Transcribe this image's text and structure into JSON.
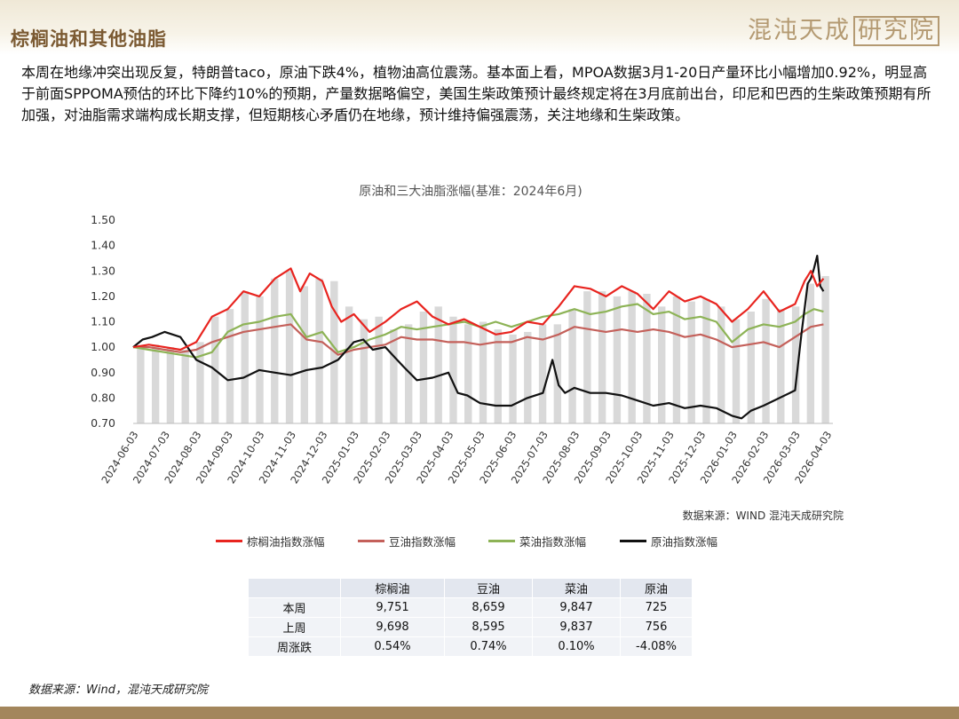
{
  "header": {
    "title": "棕榈油和其他油脂",
    "logo_text": "混沌天成",
    "logo_box_text": "研究院"
  },
  "paragraph": "本周在地缘冲突出现反复，特朗普taco，原油下跌4%，植物油高位震荡。基本面上看，MPOA数据3月1-20日产量环比小幅增加0.92%，明显高于前面SPPOMA预估的环比下降约10%的预期，产量数据略偏空，美国生柴政策预计最终规定将在3月底前出台，印尼和巴西的生柴政策预期有所加强，对油脂需求端构成长期支撑，但短期核心矛盾仍在地缘，预计维持偏强震荡，关注地缘和生柴政策。",
  "chart_source": "数据来源：WIND 混沌天成研究院",
  "chart_data": {
    "type": "line",
    "title": "原油和三大油脂涨幅(基准：2024年6月)",
    "ylim": [
      0.7,
      1.5
    ],
    "yticks": [
      "0.70",
      "0.80",
      "0.90",
      "1.00",
      "1.10",
      "1.20",
      "1.30",
      "1.40",
      "1.50"
    ],
    "x_tick_labels": [
      "2024-06-03",
      "2024-07-03",
      "2024-08-03",
      "2024-09-03",
      "2024-10-03",
      "2024-11-03",
      "2024-12-03",
      "2025-01-03",
      "2025-02-03",
      "2025-03-03",
      "2025-04-03",
      "2025-05-03",
      "2025-06-03",
      "2025-07-03",
      "2025-08-03",
      "2025-09-03",
      "2025-10-03",
      "2025-11-03",
      "2025-12-03",
      "2026-01-03",
      "2026-02-03",
      "2026-03-03",
      "2026-04-03"
    ],
    "x_tick_month_index": [
      0,
      1,
      2,
      3,
      4,
      5,
      6,
      7,
      8,
      9,
      10,
      11,
      12,
      13,
      14,
      15,
      16,
      17,
      18,
      19,
      20,
      21,
      22
    ],
    "series": [
      {
        "name": "棕榈油指数涨幅",
        "color": "#e8241f",
        "x": [
          0,
          0.5,
          1,
          1.5,
          2,
          2.5,
          3,
          3.5,
          4,
          4.5,
          5,
          5.3,
          5.6,
          6,
          6.3,
          6.6,
          7,
          7.5,
          8,
          8.5,
          9,
          9.5,
          10,
          10.5,
          11,
          11.5,
          12,
          12.5,
          13,
          13.5,
          14,
          14.5,
          15,
          15.5,
          16,
          16.5,
          17,
          17.5,
          18,
          18.5,
          19,
          19.5,
          20,
          20.5,
          21,
          21.3,
          21.5,
          21.7,
          21.9
        ],
        "y": [
          1.0,
          1.01,
          1.0,
          0.99,
          1.02,
          1.12,
          1.15,
          1.22,
          1.2,
          1.27,
          1.31,
          1.22,
          1.29,
          1.26,
          1.16,
          1.1,
          1.13,
          1.06,
          1.1,
          1.15,
          1.18,
          1.12,
          1.09,
          1.11,
          1.08,
          1.05,
          1.06,
          1.1,
          1.09,
          1.16,
          1.24,
          1.23,
          1.2,
          1.24,
          1.21,
          1.15,
          1.22,
          1.18,
          1.2,
          1.17,
          1.1,
          1.15,
          1.22,
          1.14,
          1.17,
          1.26,
          1.3,
          1.24,
          1.27
        ]
      },
      {
        "name": "豆油指数涨幅",
        "color": "#c4605a",
        "x": [
          0,
          0.5,
          1,
          1.5,
          2,
          2.5,
          3,
          3.5,
          4,
          4.5,
          5,
          5.5,
          6,
          6.5,
          7,
          7.5,
          8,
          8.5,
          9,
          9.5,
          10,
          10.5,
          11,
          11.5,
          12,
          12.5,
          13,
          13.5,
          14,
          14.5,
          15,
          15.5,
          16,
          16.5,
          17,
          17.5,
          18,
          18.5,
          19,
          19.5,
          20,
          20.5,
          21,
          21.5,
          21.9
        ],
        "y": [
          1.0,
          1.0,
          0.99,
          0.98,
          0.99,
          1.02,
          1.04,
          1.06,
          1.07,
          1.08,
          1.09,
          1.03,
          1.02,
          0.97,
          0.99,
          1.0,
          1.01,
          1.04,
          1.03,
          1.03,
          1.02,
          1.02,
          1.01,
          1.02,
          1.02,
          1.04,
          1.03,
          1.05,
          1.08,
          1.07,
          1.06,
          1.07,
          1.06,
          1.07,
          1.06,
          1.04,
          1.05,
          1.03,
          1.0,
          1.01,
          1.02,
          1.0,
          1.04,
          1.08,
          1.09
        ]
      },
      {
        "name": "菜油指数涨幅",
        "color": "#8db356",
        "x": [
          0,
          0.5,
          1,
          1.5,
          2,
          2.5,
          3,
          3.5,
          4,
          4.5,
          5,
          5.5,
          6,
          6.5,
          7,
          7.5,
          8,
          8.5,
          9,
          9.5,
          10,
          10.5,
          11,
          11.5,
          12,
          12.5,
          13,
          13.5,
          14,
          14.5,
          15,
          15.5,
          16,
          16.5,
          17,
          17.5,
          18,
          18.5,
          19,
          19.5,
          20,
          20.5,
          21,
          21.3,
          21.6,
          21.9
        ],
        "y": [
          1.0,
          0.99,
          0.98,
          0.97,
          0.96,
          0.98,
          1.06,
          1.09,
          1.1,
          1.12,
          1.13,
          1.04,
          1.06,
          0.98,
          1.0,
          1.03,
          1.05,
          1.08,
          1.07,
          1.08,
          1.09,
          1.1,
          1.08,
          1.1,
          1.08,
          1.1,
          1.12,
          1.13,
          1.15,
          1.13,
          1.14,
          1.16,
          1.17,
          1.13,
          1.14,
          1.11,
          1.12,
          1.1,
          1.02,
          1.07,
          1.09,
          1.08,
          1.1,
          1.13,
          1.15,
          1.14
        ]
      },
      {
        "name": "原油指数涨幅",
        "color": "#111111",
        "x": [
          0,
          0.3,
          0.6,
          1,
          1.5,
          2,
          2.5,
          3,
          3.5,
          4,
          4.5,
          5,
          5.5,
          6,
          6.5,
          7,
          7.3,
          7.6,
          8,
          8.3,
          8.6,
          9,
          9.5,
          10,
          10.3,
          10.6,
          11,
          11.5,
          12,
          12.5,
          13,
          13.3,
          13.5,
          13.7,
          14,
          14.5,
          15,
          15.5,
          16,
          16.5,
          17,
          17.5,
          18,
          18.5,
          19,
          19.3,
          19.6,
          20,
          20.5,
          21,
          21.2,
          21.4,
          21.5,
          21.6,
          21.7,
          21.8,
          21.9
        ],
        "y": [
          1.0,
          1.03,
          1.04,
          1.06,
          1.04,
          0.95,
          0.92,
          0.87,
          0.88,
          0.91,
          0.9,
          0.89,
          0.91,
          0.92,
          0.95,
          1.02,
          1.03,
          0.99,
          1.0,
          0.96,
          0.92,
          0.87,
          0.88,
          0.9,
          0.82,
          0.81,
          0.78,
          0.77,
          0.77,
          0.8,
          0.82,
          0.95,
          0.85,
          0.82,
          0.84,
          0.82,
          0.82,
          0.81,
          0.79,
          0.77,
          0.78,
          0.76,
          0.77,
          0.76,
          0.73,
          0.72,
          0.75,
          0.77,
          0.8,
          0.83,
          1.05,
          1.25,
          1.27,
          1.31,
          1.36,
          1.24,
          1.22
        ]
      }
    ],
    "bars": {
      "values": [
        1.0,
        1.01,
        1.0,
        0.99,
        1.02,
        1.12,
        1.15,
        1.22,
        1.2,
        1.27,
        1.3,
        1.24,
        1.27,
        1.26,
        1.16,
        1.11,
        1.12,
        1.07,
        1.09,
        1.14,
        1.16,
        1.12,
        1.09,
        1.1,
        1.07,
        1.05,
        1.06,
        1.09,
        1.09,
        1.15,
        1.22,
        1.22,
        1.2,
        1.22,
        1.21,
        1.16,
        1.2,
        1.18,
        1.19,
        1.16,
        1.11,
        1.14,
        1.19,
        1.15,
        1.16,
        1.25,
        1.28
      ]
    },
    "x_max_month": 22.2
  },
  "legend": [
    {
      "label": "棕榈油指数涨幅",
      "color": "#e8241f"
    },
    {
      "label": "豆油指数涨幅",
      "color": "#c4605a"
    },
    {
      "label": "菜油指数涨幅",
      "color": "#8db356"
    },
    {
      "label": "原油指数涨幅",
      "color": "#111111"
    }
  ],
  "table": {
    "headers": [
      "",
      "棕榈油",
      "豆油",
      "菜油",
      "原油"
    ],
    "rows": [
      [
        "本周",
        "9,751",
        "8,659",
        "9,847",
        "725"
      ],
      [
        "上周",
        "9,698",
        "8,595",
        "9,837",
        "756"
      ],
      [
        "周涨跌",
        "0.54%",
        "0.74%",
        "0.10%",
        "-4.08%"
      ]
    ]
  },
  "footer_source": "数据来源：Wind，混沌天成研究院"
}
